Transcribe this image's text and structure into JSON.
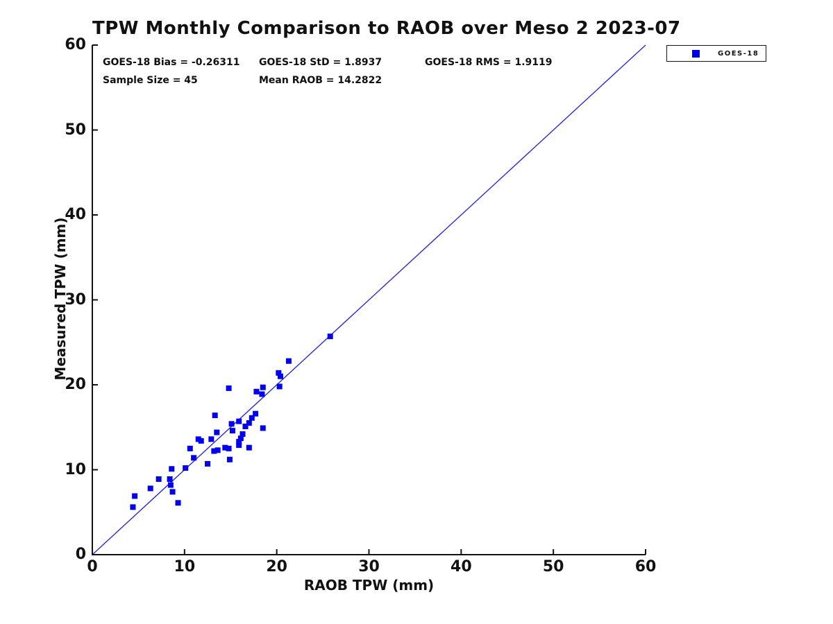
{
  "figure": {
    "title": "TPW Monthly Comparison to RAOB over Meso 2 2023-07",
    "stats": {
      "bias_label": "GOES-18 Bias = -0.26311",
      "std_label": "GOES-18 StD = 1.8937",
      "rms_label": "GOES-18 RMS = 1.9119",
      "sample_label": "Sample Size = 45",
      "mean_raob_label": "Mean RAOB = 14.2822"
    },
    "legend": {
      "label": "GOES-18"
    }
  },
  "colors": {
    "background": "#FFFFFF",
    "marker": "#0000EE",
    "reference_line": "#2B2BD7",
    "axis": "#111111",
    "text": "#111111"
  },
  "chart_data": {
    "type": "scatter",
    "title": "TPW Monthly Comparison to RAOB over Meso 2 2023-07",
    "xlabel": "RAOB TPW (mm)",
    "ylabel": "Measured TPW (mm)",
    "xlim": [
      0,
      60
    ],
    "ylim": [
      0,
      60
    ],
    "xticks": [
      0,
      10,
      20,
      30,
      40,
      50,
      60
    ],
    "yticks": [
      0,
      10,
      20,
      30,
      40,
      50,
      60
    ],
    "grid": false,
    "legend_position": "outside-top-right",
    "annotations": [
      "GOES-18 Bias = -0.26311",
      "GOES-18 StD = 1.8937",
      "GOES-18 RMS = 1.9119",
      "Sample Size = 45",
      "Mean RAOB = 14.2822"
    ],
    "reference_line": {
      "type": "identity",
      "from": [
        0,
        0
      ],
      "to": [
        60,
        60
      ]
    },
    "series": [
      {
        "name": "GOES-18",
        "marker": "square",
        "color": "#0000EE",
        "points": [
          [
            25.8,
            25.7
          ],
          [
            21.3,
            22.8
          ],
          [
            20.2,
            21.4
          ],
          [
            20.4,
            21.0
          ],
          [
            20.3,
            19.8
          ],
          [
            18.5,
            19.7
          ],
          [
            17.8,
            19.2
          ],
          [
            18.4,
            18.9
          ],
          [
            14.8,
            19.6
          ],
          [
            17.7,
            16.6
          ],
          [
            17.3,
            16.1
          ],
          [
            17.0,
            15.5
          ],
          [
            16.6,
            15.1
          ],
          [
            15.9,
            15.7
          ],
          [
            15.1,
            15.4
          ],
          [
            18.5,
            14.9
          ],
          [
            13.3,
            16.4
          ],
          [
            15.2,
            14.6
          ],
          [
            16.3,
            14.2
          ],
          [
            16.1,
            13.7
          ],
          [
            15.9,
            13.3
          ],
          [
            15.9,
            12.9
          ],
          [
            17.0,
            12.6
          ],
          [
            13.5,
            14.4
          ],
          [
            11.5,
            13.6
          ],
          [
            11.8,
            13.4
          ],
          [
            12.9,
            13.6
          ],
          [
            10.6,
            12.5
          ],
          [
            14.8,
            12.5
          ],
          [
            13.2,
            12.2
          ],
          [
            13.6,
            12.3
          ],
          [
            14.4,
            12.6
          ],
          [
            12.5,
            10.7
          ],
          [
            11.0,
            11.4
          ],
          [
            14.9,
            11.2
          ],
          [
            10.1,
            10.2
          ],
          [
            8.6,
            10.1
          ],
          [
            4.6,
            6.9
          ],
          [
            4.4,
            5.6
          ],
          [
            6.3,
            7.8
          ],
          [
            7.2,
            8.9
          ],
          [
            8.4,
            8.9
          ],
          [
            8.5,
            8.2
          ],
          [
            8.7,
            7.4
          ],
          [
            9.3,
            6.1
          ]
        ]
      }
    ]
  }
}
